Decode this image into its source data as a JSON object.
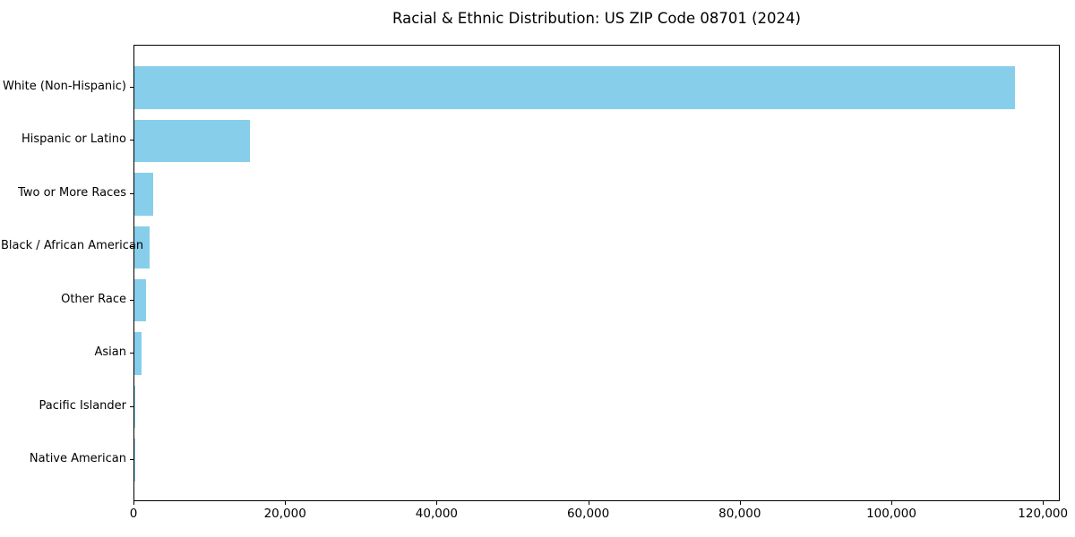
{
  "chart_data": {
    "type": "bar",
    "orientation": "horizontal",
    "title": "Racial & Ethnic Distribution: US ZIP Code 08701 (2024)",
    "categories": [
      "White (Non-Hispanic)",
      "Hispanic or Latino",
      "Two or More Races",
      "Black / African American",
      "Other Race",
      "Asian",
      "Pacific Islander",
      "Native American"
    ],
    "values": [
      116400,
      15230,
      2520,
      2050,
      1560,
      950,
      50,
      30
    ],
    "xlabel": "",
    "ylabel": "",
    "x_tick_labels": [
      "0",
      "20,000",
      "40,000",
      "60,000",
      "80,000",
      "100,000",
      "120,000"
    ],
    "x_tick_values": [
      0,
      20000,
      40000,
      60000,
      80000,
      100000,
      120000
    ],
    "xlim": [
      0,
      122220
    ],
    "bar_color": "#87CEEB",
    "text_color": "#000000",
    "grid": false,
    "legend": null
  }
}
